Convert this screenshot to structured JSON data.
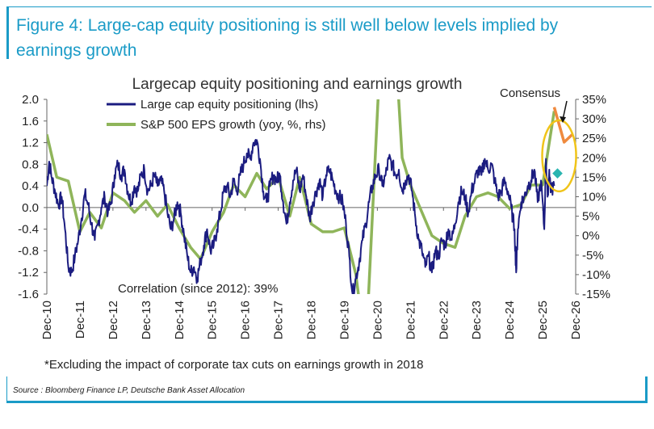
{
  "figure": {
    "title": "Figure 4: Large-cap equity positioning is still well below levels implied by earnings growth",
    "source": "Source : Bloomberg Finance LP, Deutsche Bank Asset Allocation"
  },
  "colors": {
    "positioning": "#1b1c80",
    "eps": "#8fb55a",
    "consensus": "#ef8a3e",
    "consensus_marker": "#2ab5b0",
    "ellipse": "#f0c419",
    "accent": "#1a9bc7"
  },
  "chart_data": {
    "type": "line",
    "title": "Largecap equity positioning and earnings growth",
    "x_tick_labels": [
      "Dec-10",
      "Dec-11",
      "Dec-12",
      "Dec-13",
      "Dec-14",
      "Dec-15",
      "Dec-16",
      "Dec-17",
      "Dec-18",
      "Dec-19",
      "Dec-20",
      "Dec-21",
      "Dec-22",
      "Dec-23",
      "Dec-24",
      "Dec-25",
      "Dec-26"
    ],
    "y_left": {
      "ticks": [
        "2.0",
        "1.6",
        "1.2",
        "0.8",
        "0.4",
        "0.0",
        "-0.4",
        "-0.8",
        "-1.2",
        "-1.6"
      ],
      "min": -1.6,
      "max": 2.0
    },
    "y_right": {
      "ticks": [
        "35%",
        "30%",
        "25%",
        "20%",
        "15%",
        "10%",
        "5%",
        "0%",
        "-5%",
        "-10%",
        "-15%"
      ],
      "min": -15,
      "max": 35
    },
    "series": [
      {
        "name": "Large cap equity positioning (lhs)",
        "axis": "left",
        "points": [
          [
            2010.95,
            0.4
          ],
          [
            2011.02,
            0.85
          ],
          [
            2011.1,
            0.55
          ],
          [
            2011.2,
            0.3
          ],
          [
            2011.3,
            0.05
          ],
          [
            2011.4,
            0.2
          ],
          [
            2011.5,
            -0.4
          ],
          [
            2011.6,
            -1.1
          ],
          [
            2011.7,
            -1.2
          ],
          [
            2011.8,
            -0.9
          ],
          [
            2011.9,
            -0.6
          ],
          [
            2012.0,
            -0.2
          ],
          [
            2012.1,
            0.25
          ],
          [
            2012.2,
            0.05
          ],
          [
            2012.3,
            -0.3
          ],
          [
            2012.4,
            -0.6
          ],
          [
            2012.5,
            -0.3
          ],
          [
            2012.6,
            0.0
          ],
          [
            2012.7,
            0.2
          ],
          [
            2012.8,
            -0.1
          ],
          [
            2012.9,
            0.1
          ],
          [
            2013.0,
            0.6
          ],
          [
            2013.1,
            0.8
          ],
          [
            2013.2,
            0.6
          ],
          [
            2013.3,
            0.7
          ],
          [
            2013.4,
            0.3
          ],
          [
            2013.5,
            0.1
          ],
          [
            2013.6,
            0.4
          ],
          [
            2013.7,
            0.3
          ],
          [
            2013.8,
            0.6
          ],
          [
            2013.9,
            0.7
          ],
          [
            2014.0,
            0.3
          ],
          [
            2014.1,
            0.4
          ],
          [
            2014.2,
            0.6
          ],
          [
            2014.3,
            0.4
          ],
          [
            2014.4,
            0.5
          ],
          [
            2014.5,
            0.3
          ],
          [
            2014.6,
            -0.1
          ],
          [
            2014.7,
            -0.4
          ],
          [
            2014.8,
            -0.2
          ],
          [
            2014.9,
            0.1
          ],
          [
            2015.0,
            -0.1
          ],
          [
            2015.1,
            -0.5
          ],
          [
            2015.2,
            -0.9
          ],
          [
            2015.3,
            -1.2
          ],
          [
            2015.4,
            -1.1
          ],
          [
            2015.5,
            -1.3
          ],
          [
            2015.6,
            -1.0
          ],
          [
            2015.7,
            -0.7
          ],
          [
            2015.8,
            -0.4
          ],
          [
            2015.9,
            -0.8
          ],
          [
            2016.0,
            -0.7
          ],
          [
            2016.1,
            -0.4
          ],
          [
            2016.2,
            -0.1
          ],
          [
            2016.3,
            0.3
          ],
          [
            2016.4,
            0.4
          ],
          [
            2016.5,
            0.2
          ],
          [
            2016.6,
            0.5
          ],
          [
            2016.7,
            0.3
          ],
          [
            2016.8,
            0.6
          ],
          [
            2016.9,
            0.8
          ],
          [
            2017.0,
            1.0
          ],
          [
            2017.1,
            0.9
          ],
          [
            2017.2,
            1.2
          ],
          [
            2017.3,
            1.25
          ],
          [
            2017.4,
            0.9
          ],
          [
            2017.5,
            0.3
          ],
          [
            2017.6,
            0.1
          ],
          [
            2017.7,
            0.4
          ],
          [
            2017.8,
            0.6
          ],
          [
            2017.9,
            0.5
          ],
          [
            2018.0,
            0.6
          ],
          [
            2018.1,
            0.1
          ],
          [
            2018.2,
            -0.3
          ],
          [
            2018.3,
            0.1
          ],
          [
            2018.4,
            0.5
          ],
          [
            2018.5,
            0.7
          ],
          [
            2018.6,
            0.3
          ],
          [
            2018.7,
            0.6
          ],
          [
            2018.8,
            0.2
          ],
          [
            2018.9,
            -0.2
          ],
          [
            2019.0,
            0.1
          ],
          [
            2019.1,
            0.3
          ],
          [
            2019.2,
            0.5
          ],
          [
            2019.3,
            0.2
          ],
          [
            2019.4,
            0.6
          ],
          [
            2019.5,
            0.7
          ],
          [
            2019.6,
            0.5
          ],
          [
            2019.7,
            0.3
          ],
          [
            2019.8,
            0.2
          ],
          [
            2019.9,
            0.1
          ],
          [
            2020.0,
            -0.3
          ],
          [
            2020.1,
            -0.9
          ],
          [
            2020.2,
            -1.6
          ],
          [
            2020.3,
            -1.3
          ],
          [
            2020.4,
            -1.0
          ],
          [
            2020.5,
            -0.6
          ],
          [
            2020.6,
            -0.3
          ],
          [
            2020.7,
            0.1
          ],
          [
            2020.8,
            0.4
          ],
          [
            2020.9,
            0.6
          ],
          [
            2021.0,
            0.7
          ],
          [
            2021.1,
            0.4
          ],
          [
            2021.2,
            0.6
          ],
          [
            2021.3,
            0.9
          ],
          [
            2021.4,
            0.8
          ],
          [
            2021.5,
            0.6
          ],
          [
            2021.6,
            0.7
          ],
          [
            2021.7,
            0.3
          ],
          [
            2021.8,
            0.5
          ],
          [
            2021.9,
            0.6
          ],
          [
            2022.0,
            0.3
          ],
          [
            2022.1,
            -0.2
          ],
          [
            2022.2,
            -0.6
          ],
          [
            2022.3,
            -0.8
          ],
          [
            2022.4,
            -1.1
          ],
          [
            2022.5,
            -0.9
          ],
          [
            2022.6,
            -1.2
          ],
          [
            2022.7,
            -0.8
          ],
          [
            2022.8,
            -0.9
          ],
          [
            2022.9,
            -0.6
          ],
          [
            2023.0,
            -0.7
          ],
          [
            2023.1,
            -0.4
          ],
          [
            2023.2,
            -0.6
          ],
          [
            2023.3,
            -0.3
          ],
          [
            2023.4,
            0.1
          ],
          [
            2023.5,
            0.3
          ],
          [
            2023.6,
            0.2
          ],
          [
            2023.7,
            -0.1
          ],
          [
            2023.8,
            0.3
          ],
          [
            2023.9,
            0.5
          ],
          [
            2024.0,
            0.7
          ],
          [
            2024.1,
            0.6
          ],
          [
            2024.2,
            0.9
          ],
          [
            2024.3,
            0.7
          ],
          [
            2024.4,
            0.8
          ],
          [
            2024.5,
            0.5
          ],
          [
            2024.6,
            0.2
          ],
          [
            2024.7,
            0.3
          ],
          [
            2024.8,
            0.5
          ],
          [
            2024.9,
            0.3
          ],
          [
            2025.0,
            0.0
          ],
          [
            2025.1,
            -0.4
          ],
          [
            2025.15,
            -1.2
          ],
          [
            2025.2,
            -0.4
          ],
          [
            2025.3,
            0.1
          ],
          [
            2025.4,
            0.2
          ],
          [
            2025.5,
            0.4
          ],
          [
            2025.6,
            0.5
          ],
          [
            2025.7,
            0.7
          ],
          [
            2025.8,
            0.1
          ],
          [
            2025.9,
            0.5
          ],
          [
            2026.0,
            -0.4
          ],
          [
            2026.05,
            0.9
          ],
          [
            2026.1,
            0.2
          ],
          [
            2026.15,
            0.7
          ],
          [
            2026.2,
            0.3
          ],
          [
            2026.3,
            0.4
          ]
        ]
      },
      {
        "name": "S&P 500 EPS growth (yoy, %, rhs)",
        "axis": "right",
        "points": [
          [
            2010.95,
            26
          ],
          [
            2011.25,
            15
          ],
          [
            2011.6,
            14
          ],
          [
            2011.95,
            1
          ],
          [
            2012.25,
            6
          ],
          [
            2012.6,
            2
          ],
          [
            2012.95,
            11
          ],
          [
            2013.3,
            9
          ],
          [
            2013.6,
            6
          ],
          [
            2013.95,
            9
          ],
          [
            2014.3,
            5
          ],
          [
            2014.6,
            8
          ],
          [
            2014.95,
            2
          ],
          [
            2015.3,
            -3
          ],
          [
            2015.6,
            -6
          ],
          [
            2015.95,
            1
          ],
          [
            2016.3,
            6
          ],
          [
            2016.6,
            13
          ],
          [
            2016.95,
            10
          ],
          [
            2017.3,
            16
          ],
          [
            2017.6,
            12
          ],
          [
            2017.95,
            15
          ],
          [
            2018.3,
            5
          ],
          [
            2018.6,
            15
          ],
          [
            2018.95,
            3
          ],
          [
            2019.3,
            1
          ],
          [
            2019.6,
            1
          ],
          [
            2019.95,
            2
          ],
          [
            2020.3,
            -10
          ],
          [
            2020.6,
            -30
          ],
          [
            2021.0,
            40
          ],
          [
            2021.35,
            70
          ],
          [
            2021.7,
            20
          ],
          [
            2021.95,
            13
          ],
          [
            2022.3,
            6
          ],
          [
            2022.6,
            0
          ],
          [
            2022.95,
            -2
          ],
          [
            2023.3,
            -3
          ],
          [
            2023.6,
            5
          ],
          [
            2023.95,
            10
          ],
          [
            2024.3,
            11
          ],
          [
            2024.6,
            10
          ],
          [
            2024.95,
            7
          ],
          [
            2025.3,
            8
          ],
          [
            2025.6,
            13
          ],
          [
            2025.95,
            13
          ],
          [
            2026.3,
            32
          ]
        ]
      }
    ],
    "consensus": {
      "label": "Consensus",
      "points": [
        [
          2026.3,
          33
        ],
        [
          2026.6,
          24
        ],
        [
          2026.85,
          26
        ]
      ],
      "marker": [
        2026.4,
        16
      ]
    },
    "annotations": {
      "correlation": "Correlation (since 2012): 39%",
      "footnote": "*Excluding the impact of corporate tax cuts on earnings growth in 2018"
    },
    "legend": "top-left",
    "grid": false
  }
}
